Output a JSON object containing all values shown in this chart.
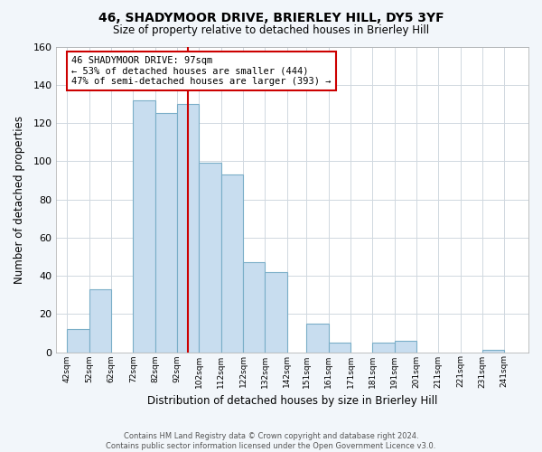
{
  "title": "46, SHADYMOOR DRIVE, BRIERLEY HILL, DY5 3YF",
  "subtitle": "Size of property relative to detached houses in Brierley Hill",
  "xlabel": "Distribution of detached houses by size in Brierley Hill",
  "ylabel": "Number of detached properties",
  "bar_color": "#c8ddef",
  "bar_edge_color": "#7aaec8",
  "annotation_title": "46 SHADYMOOR DRIVE: 97sqm",
  "annotation_line1": "← 53% of detached houses are smaller (444)",
  "annotation_line2": "47% of semi-detached houses are larger (393) →",
  "vline_x": 97,
  "vline_color": "#cc0000",
  "bins_left": [
    42,
    52,
    62,
    72,
    82,
    92,
    102,
    112,
    122,
    132,
    142,
    151,
    161,
    171,
    181,
    191,
    201,
    211,
    221,
    231,
    241
  ],
  "bin_rights": [
    52,
    62,
    72,
    82,
    92,
    102,
    112,
    122,
    132,
    142,
    151,
    161,
    171,
    181,
    191,
    201,
    211,
    221,
    231,
    241,
    251
  ],
  "heights": [
    12,
    33,
    0,
    132,
    125,
    130,
    99,
    93,
    47,
    42,
    0,
    15,
    5,
    0,
    5,
    6,
    0,
    0,
    0,
    1,
    0
  ],
  "x_tick_labels": [
    "42sqm",
    "52sqm",
    "62sqm",
    "72sqm",
    "82sqm",
    "92sqm",
    "102sqm",
    "112sqm",
    "122sqm",
    "132sqm",
    "142sqm",
    "151sqm",
    "161sqm",
    "171sqm",
    "181sqm",
    "191sqm",
    "201sqm",
    "211sqm",
    "221sqm",
    "231sqm",
    "241sqm"
  ],
  "x_tick_positions": [
    42,
    52,
    62,
    72,
    82,
    92,
    102,
    112,
    122,
    132,
    142,
    151,
    161,
    171,
    181,
    191,
    201,
    211,
    221,
    231,
    241
  ],
  "ylim": [
    0,
    160
  ],
  "xlim": [
    37,
    252
  ],
  "yticks": [
    0,
    20,
    40,
    60,
    80,
    100,
    120,
    140,
    160
  ],
  "footer_line1": "Contains HM Land Registry data © Crown copyright and database right 2024.",
  "footer_line2": "Contains public sector information licensed under the Open Government Licence v3.0.",
  "background_color": "#f2f6fa",
  "plot_background": "#ffffff",
  "grid_color": "#d0d8e0"
}
